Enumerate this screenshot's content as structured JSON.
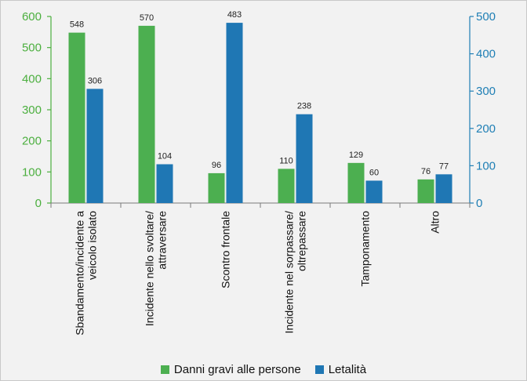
{
  "chart_data": {
    "type": "bar",
    "categories": [
      [
        "Sbandamento/incidente a",
        "veicolo isolato"
      ],
      [
        "Incidente nello svoltare/",
        "attraversare"
      ],
      [
        "Scontro frontale"
      ],
      [
        "Incidente nel sorpassare/",
        "oltrepassare"
      ],
      [
        "Tamponamento"
      ],
      [
        "Altro"
      ]
    ],
    "series": [
      {
        "name": "Danni gravi alle persone",
        "axis": "left",
        "color": "#4caf50",
        "values": [
          548,
          570,
          96,
          110,
          129,
          76
        ]
      },
      {
        "name": "Letalità",
        "axis": "right",
        "color": "#1f77b4",
        "values": [
          306,
          104,
          483,
          238,
          60,
          77
        ]
      }
    ],
    "y_left": {
      "min": 0,
      "max": 600,
      "ticks": [
        0,
        100,
        200,
        300,
        400,
        500,
        600
      ],
      "color": "#4caf3f"
    },
    "y_right": {
      "min": 0,
      "max": 500,
      "ticks": [
        0,
        100,
        200,
        300,
        400,
        500
      ],
      "color": "#1f7fb5"
    },
    "legend_position": "bottom",
    "grid": false
  }
}
